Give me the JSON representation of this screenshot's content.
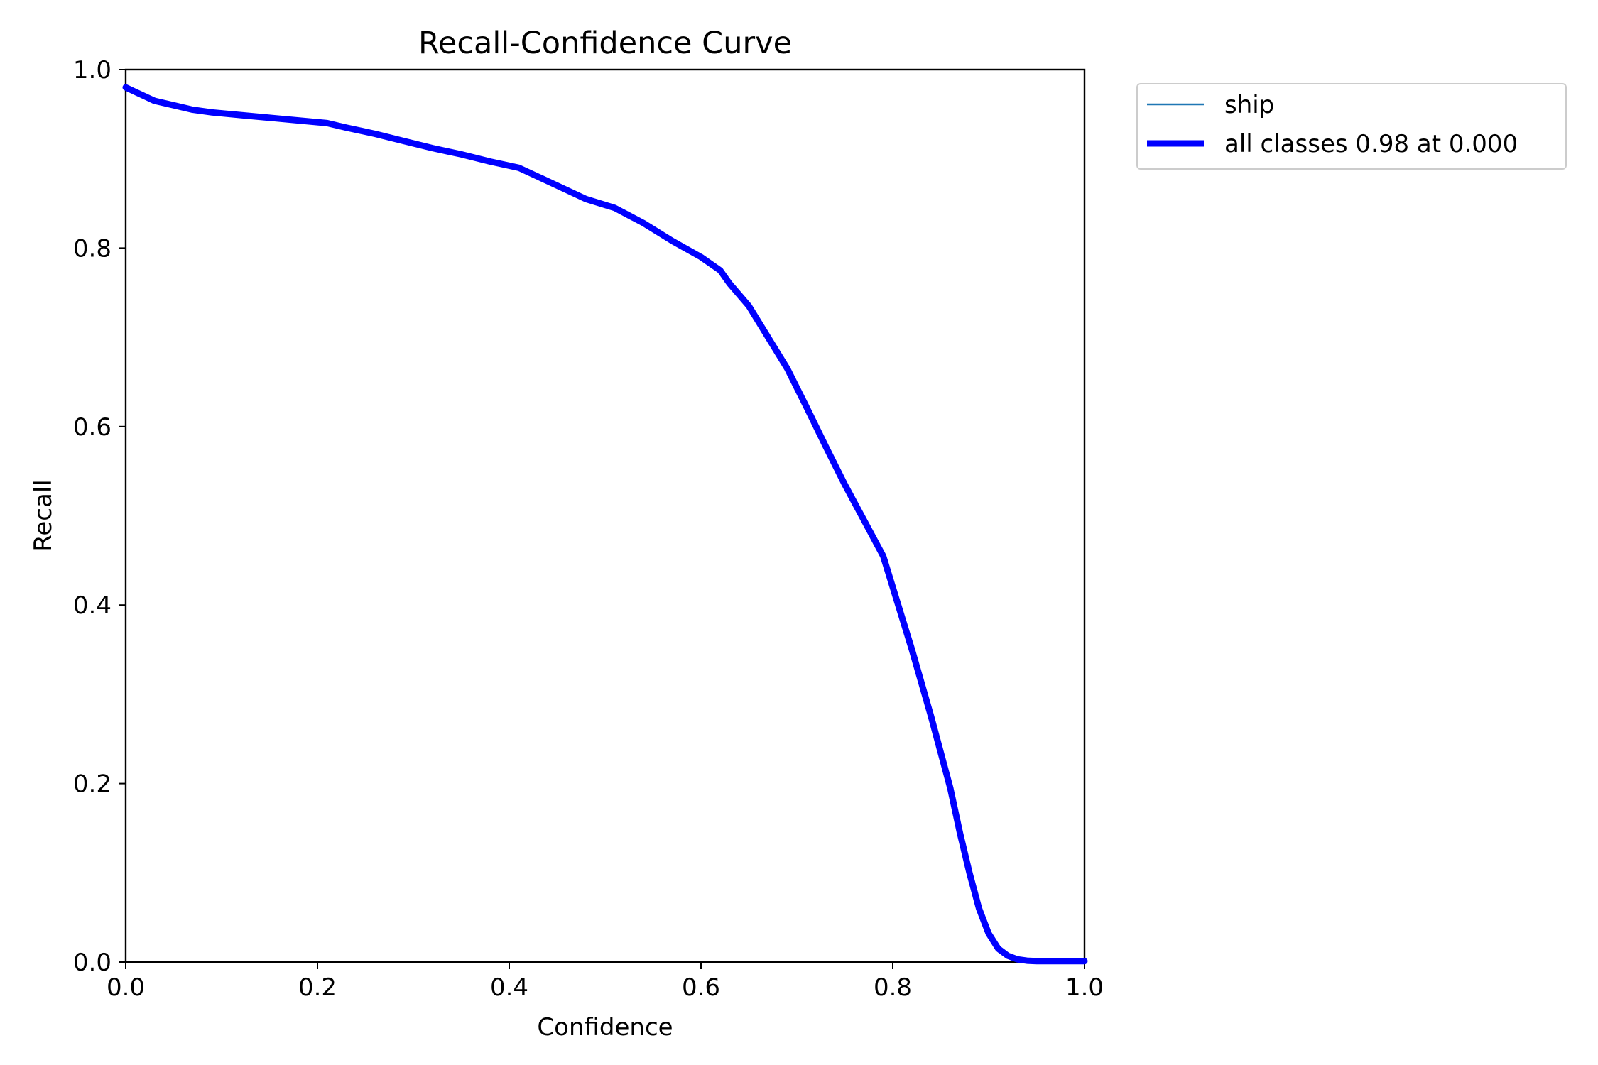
{
  "chart_data": {
    "type": "line",
    "title": "Recall-Confidence Curve",
    "xlabel": "Confidence",
    "ylabel": "Recall",
    "xlim": [
      0,
      1
    ],
    "ylim": [
      0,
      1
    ],
    "x_ticks": [
      "0.0",
      "0.2",
      "0.4",
      "0.6",
      "0.8",
      "1.0"
    ],
    "y_ticks": [
      "0.0",
      "0.2",
      "0.4",
      "0.6",
      "0.8",
      "1.0"
    ],
    "grid": false,
    "legend_position": "outside-top-right",
    "series": [
      {
        "name": "ship",
        "color": "#1f77b4",
        "x": [
          0.0,
          0.01,
          0.02,
          0.03,
          0.05,
          0.07,
          0.09,
          0.12,
          0.15,
          0.18,
          0.21,
          0.23,
          0.26,
          0.29,
          0.32,
          0.35,
          0.38,
          0.41,
          0.43,
          0.46,
          0.48,
          0.51,
          0.54,
          0.57,
          0.6,
          0.62,
          0.63,
          0.65,
          0.67,
          0.69,
          0.71,
          0.73,
          0.75,
          0.77,
          0.79,
          0.8,
          0.82,
          0.84,
          0.86,
          0.87,
          0.88,
          0.89,
          0.9,
          0.91,
          0.92,
          0.93,
          0.94,
          0.95,
          0.97,
          1.0
        ],
        "y": [
          0.98,
          0.975,
          0.97,
          0.965,
          0.96,
          0.955,
          0.952,
          0.949,
          0.946,
          0.943,
          0.94,
          0.935,
          0.928,
          0.92,
          0.912,
          0.905,
          0.897,
          0.89,
          0.88,
          0.865,
          0.855,
          0.845,
          0.828,
          0.808,
          0.79,
          0.775,
          0.76,
          0.735,
          0.7,
          0.665,
          0.622,
          0.578,
          0.535,
          0.495,
          0.455,
          0.42,
          0.35,
          0.275,
          0.195,
          0.145,
          0.1,
          0.06,
          0.032,
          0.015,
          0.007,
          0.003,
          0.0015,
          0.001,
          0.001,
          0.001
        ]
      },
      {
        "name": "all classes 0.98 at 0.000",
        "color": "#0000ff",
        "x": [
          0.0,
          0.01,
          0.02,
          0.03,
          0.05,
          0.07,
          0.09,
          0.12,
          0.15,
          0.18,
          0.21,
          0.23,
          0.26,
          0.29,
          0.32,
          0.35,
          0.38,
          0.41,
          0.43,
          0.46,
          0.48,
          0.51,
          0.54,
          0.57,
          0.6,
          0.62,
          0.63,
          0.65,
          0.67,
          0.69,
          0.71,
          0.73,
          0.75,
          0.77,
          0.79,
          0.8,
          0.82,
          0.84,
          0.86,
          0.87,
          0.88,
          0.89,
          0.9,
          0.91,
          0.92,
          0.93,
          0.94,
          0.95,
          0.97,
          1.0
        ],
        "y": [
          0.98,
          0.975,
          0.97,
          0.965,
          0.96,
          0.955,
          0.952,
          0.949,
          0.946,
          0.943,
          0.94,
          0.935,
          0.928,
          0.92,
          0.912,
          0.905,
          0.897,
          0.89,
          0.88,
          0.865,
          0.855,
          0.845,
          0.828,
          0.808,
          0.79,
          0.775,
          0.76,
          0.735,
          0.7,
          0.665,
          0.622,
          0.578,
          0.535,
          0.495,
          0.455,
          0.42,
          0.35,
          0.275,
          0.195,
          0.145,
          0.1,
          0.06,
          0.032,
          0.015,
          0.007,
          0.003,
          0.0015,
          0.001,
          0.001,
          0.001
        ]
      }
    ]
  }
}
